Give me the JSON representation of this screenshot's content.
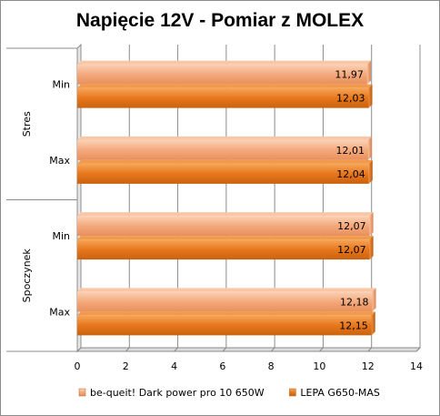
{
  "chart_data": {
    "type": "bar",
    "orientation": "horizontal",
    "title": "Napięcie 12V -  Pomiar z MOLEX",
    "xlim": [
      0,
      14
    ],
    "x_ticks": [
      "0",
      "2",
      "4",
      "6",
      "8",
      "10",
      "12",
      "14"
    ],
    "grid": true,
    "legend_position": "bottom",
    "groups": [
      {
        "label": "Stres",
        "categories": [
          "Min",
          "Max"
        ]
      },
      {
        "label": "Spoczynek",
        "categories": [
          "Min",
          "Max"
        ]
      }
    ],
    "series": [
      {
        "name": "be-queit! Dark  power pro 10  650W",
        "color": "#f4a97c",
        "values": [
          11.97,
          12.01,
          12.07,
          12.18
        ],
        "labels": [
          "11,97",
          "12,01",
          "12,07",
          "12,18"
        ]
      },
      {
        "name": "LEPA G650-MAS",
        "color": "#e8771c",
        "values": [
          12.03,
          12.04,
          12.07,
          12.15
        ],
        "labels": [
          "12,03",
          "12,04",
          "12,07",
          "12,15"
        ]
      }
    ]
  }
}
